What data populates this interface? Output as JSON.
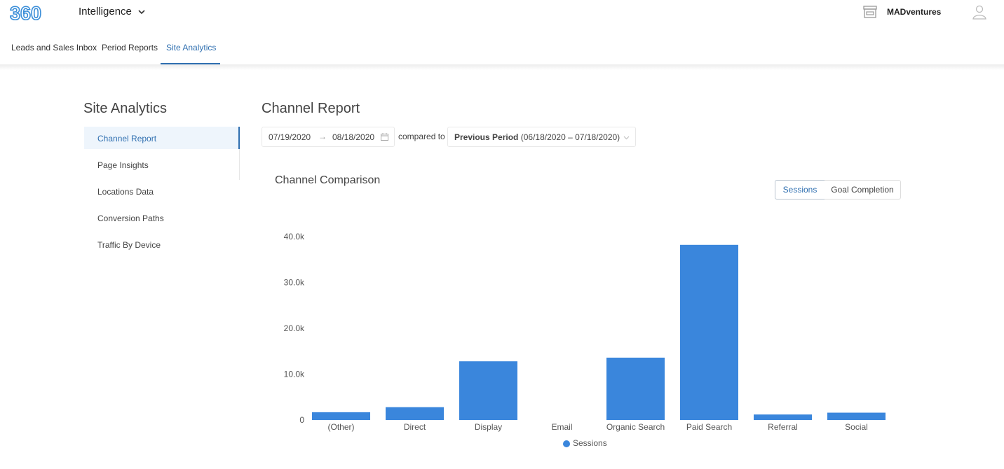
{
  "header": {
    "logo": "360",
    "app_name": "Intelligence",
    "account_name": "MADventures",
    "colors": {
      "accent": "#2f6fb0",
      "logo": "#3b8ed8"
    }
  },
  "tabs": [
    {
      "label": "Leads and Sales Inbox",
      "active": false
    },
    {
      "label": "Period Reports",
      "active": false
    },
    {
      "label": "Site Analytics",
      "active": true
    }
  ],
  "sidebar": {
    "title": "Site Analytics",
    "items": [
      {
        "label": "Channel Report",
        "active": true
      },
      {
        "label": "Page Insights",
        "active": false
      },
      {
        "label": "Locations Data",
        "active": false
      },
      {
        "label": "Conversion Paths",
        "active": false
      },
      {
        "label": "Traffic By Device",
        "active": false
      }
    ]
  },
  "main": {
    "title": "Channel Report",
    "date_start": "07/19/2020",
    "date_arrow": "→",
    "date_end": "08/18/2020",
    "compared_label": "compared to",
    "period_label": "Previous Period",
    "period_range": "(06/18/2020 – 07/18/2020)",
    "chart_title": "Channel Comparison",
    "toggles": [
      {
        "label": "Sessions",
        "active": true
      },
      {
        "label": "Goal Completion",
        "active": false
      }
    ]
  },
  "chart_data": {
    "type": "bar",
    "title": "",
    "categories": [
      "(Other)",
      "Direct",
      "Display",
      "Email",
      "Organic Search",
      "Paid Search",
      "Referral",
      "Social"
    ],
    "series": [
      {
        "name": "Sessions",
        "values": [
          1700,
          2800,
          12800,
          0,
          13600,
          38200,
          1200,
          1600
        ],
        "color": "#3a86dc"
      }
    ],
    "ylim": [
      0,
      40000
    ],
    "yticks": [
      0,
      10000,
      20000,
      30000,
      40000
    ],
    "ytick_labels": [
      "0",
      "10.0k",
      "20.0k",
      "30.0k",
      "40.0k"
    ],
    "xlabel": "",
    "ylabel": "",
    "grid": false,
    "legend": "bottom-center"
  }
}
